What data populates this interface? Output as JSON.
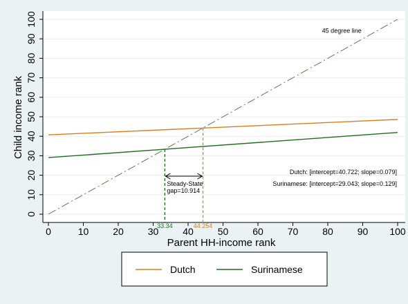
{
  "chart_data": {
    "type": "line",
    "xlabel": "Parent HH-income rank",
    "ylabel": "Child income rank",
    "xlim": [
      0,
      100
    ],
    "ylim": [
      0,
      100
    ],
    "x_ticks": [
      0,
      10,
      20,
      30,
      40,
      50,
      60,
      70,
      80,
      90,
      100
    ],
    "y_ticks": [
      0,
      10,
      20,
      30,
      40,
      50,
      60,
      70,
      80,
      90,
      100
    ],
    "grid": "y",
    "legend": "bottom",
    "series": [
      {
        "name": "Dutch",
        "color": "#e07b1a",
        "intercept": 40.722,
        "slope": 0.079,
        "x": [
          0,
          100
        ],
        "y": [
          40.722,
          48.622
        ]
      },
      {
        "name": "Surinamese",
        "color": "#1c6e1c",
        "intercept": 29.043,
        "slope": 0.129,
        "x": [
          0,
          100
        ],
        "y": [
          29.043,
          41.943
        ]
      }
    ],
    "reference_line": {
      "label": "45 degree line",
      "x": [
        0,
        100
      ],
      "y": [
        0,
        100
      ],
      "color": "#5c7a4a"
    },
    "steady_states": [
      {
        "value": 33.34,
        "label": "33.34",
        "color": "#1c6e1c"
      },
      {
        "value": 44.254,
        "label": "44.254",
        "color": "#e07b1a"
      }
    ],
    "gap": {
      "label_line1": "Steady-State",
      "label_line2": "gap=10.914",
      "from": 33.34,
      "to": 44.254
    },
    "annotations": [
      "Dutch: [intercept=40.722; slope=0.079]",
      "Surinamese: [intercept=29.043; slope=0.129]"
    ]
  }
}
